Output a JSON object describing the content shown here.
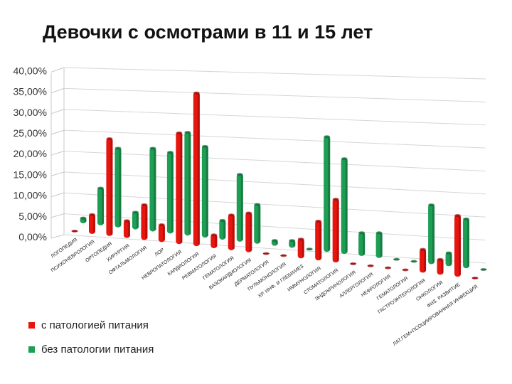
{
  "page": {
    "title": "Девочки с осмотрами в 11 и 15 лет"
  },
  "chart_data": {
    "type": "bar",
    "title": "Девочки с осмотрами в 11 и 15 лет",
    "categories": [
      "ЛОГОПЕДИЯ",
      "ПСИХОНЕВРОЛОГИЯ",
      "ОРТОПЕДИЯ",
      "ХИРУРГИЯ",
      "ОФТАЛЬМОЛОГИЯ",
      "ЛОР",
      "НЕВРОПАТОЛОГИЯ",
      "КАРДИОЛОГИЯ",
      "РЕВМАТОЛОГИЯ",
      "ГЕМАТОЛОГИЯ",
      "ВАЗОКАРДИОЛОГИЯ",
      "ДЕРМАТОЛОГИЯ",
      "ПУЛЬМОНОЛОГИЯ",
      "ХР. ИНФ. И ГЛЕБИ/ИЕЗ",
      "ИММУНОЛОГИЯ",
      "СТОМАТОЛОГИЯ",
      "ЭНДОКРИНОЛОГИЯ",
      "АЛЛЕРГОЛОГИЯ",
      "НЕФРОЛОГИЯ",
      "ГЕМАТОЛОГИЯ",
      "ГАСТРОЭНТЕРОЛОГИЯ",
      "ОНКОЛОГИЯ",
      "ФИЗ. РАЗВИТИЕ",
      "ЛАТ.ГЕМ+ПСОЦИИРОВАННАЯ ИНФЕКЦИЯ"
    ],
    "series": [
      {
        "name": "с патологией питания",
        "color": "#e8150f",
        "values": [
          0.3,
          5.0,
          24.5,
          4.5,
          9.0,
          4.5,
          28.0,
          38.5,
          3.5,
          9.0,
          10.0,
          0.3,
          0.3,
          5.0,
          10.0,
          16.0,
          0.3,
          0.3,
          0.3,
          0.3,
          6.0,
          4.0,
          15.5,
          0.3
        ]
      },
      {
        "name": "без патологии питания",
        "color": "#1e9e55",
        "values": [
          1.5,
          9.5,
          20.0,
          4.5,
          21.0,
          20.5,
          26.0,
          23.0,
          5.0,
          17.0,
          10.0,
          1.5,
          2.0,
          0.3,
          29.0,
          24.0,
          6.0,
          6.5,
          0.3,
          0.3,
          15.0,
          3.5,
          12.5,
          0.3
        ]
      }
    ],
    "y_ticks": [
      "0,00%",
      "5,00%",
      "10,00%",
      "15,00%",
      "20,00%",
      "25,00%",
      "30,00%",
      "35,00%",
      "40,00%"
    ],
    "ylim": [
      0,
      40
    ],
    "xlabel": "",
    "ylabel": "",
    "grid": true,
    "legend_position": "bottom-left"
  }
}
